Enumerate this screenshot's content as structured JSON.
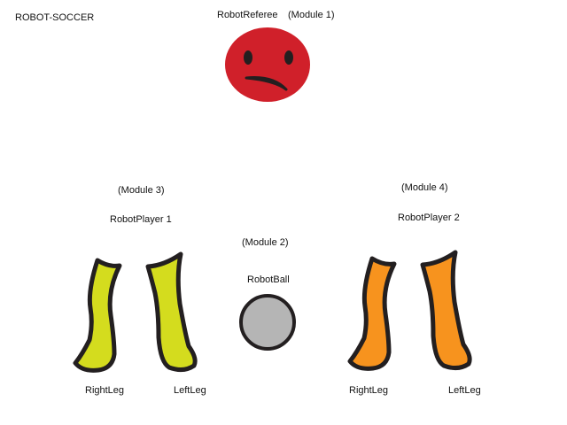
{
  "diagram": {
    "title": "ROBOT-SOCCER",
    "referee": {
      "name": "RobotReferee",
      "module": "(Module 1)",
      "color": "#d0202a"
    },
    "ball": {
      "name": "RobotBall",
      "module": "(Module 2)",
      "color": "#b5b5b5"
    },
    "player1": {
      "name": "RobotPlayer 1",
      "module": "(Module 3)",
      "right_leg": "RightLeg",
      "left_leg": "LeftLeg",
      "color": "#d4dc1e"
    },
    "player2": {
      "name": "RobotPlayer 2",
      "module": "(Module 4)",
      "right_leg": "RightLeg",
      "left_leg": "LeftLeg",
      "color": "#f7931e"
    },
    "outline_color": "#231f20",
    "icons": {
      "referee": "sad-face-icon",
      "ball": "ball-icon",
      "leg": "leg-icon"
    }
  }
}
